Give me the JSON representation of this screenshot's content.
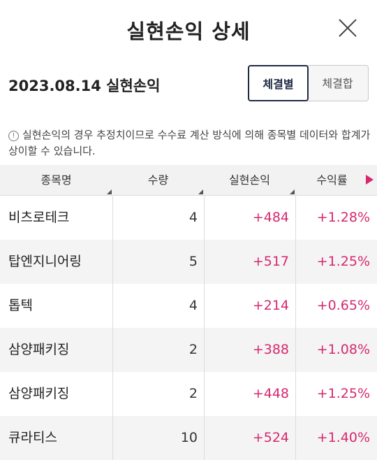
{
  "header": {
    "title": "실현손익 상세",
    "close_icon": "close-icon"
  },
  "subheader": {
    "date_label": "2023.08.14 실현손익"
  },
  "toggle": {
    "by_trade": "체결별",
    "by_sum": "체결합",
    "selected": "체결별"
  },
  "notice": {
    "icon": "info-icon",
    "text": "실현손익의 경우 추정치이므로 수수료 계산 방식에 의해 종목별 데이터와 합계가 상이할 수 있습니다."
  },
  "table": {
    "columns": [
      "종목명",
      "수량",
      "실현손익",
      "수익률"
    ],
    "next_columns_icon": "next-arrow-icon",
    "rows": [
      {
        "name": "비츠로테크",
        "qty": "4",
        "pl": "+484",
        "rate": "+1.28%"
      },
      {
        "name": "탑엔지니어링",
        "qty": "5",
        "pl": "+517",
        "rate": "+1.25%"
      },
      {
        "name": "톱텍",
        "qty": "4",
        "pl": "+214",
        "rate": "+0.65%"
      },
      {
        "name": "삼양패키징",
        "qty": "2",
        "pl": "+388",
        "rate": "+1.08%"
      },
      {
        "name": "삼양패키징",
        "qty": "2",
        "pl": "+448",
        "rate": "+1.25%"
      },
      {
        "name": "큐라티스",
        "qty": "10",
        "pl": "+524",
        "rate": "+1.40%"
      }
    ]
  },
  "colors": {
    "profit": "#d6286e",
    "accent_border": "#1f2a44"
  }
}
